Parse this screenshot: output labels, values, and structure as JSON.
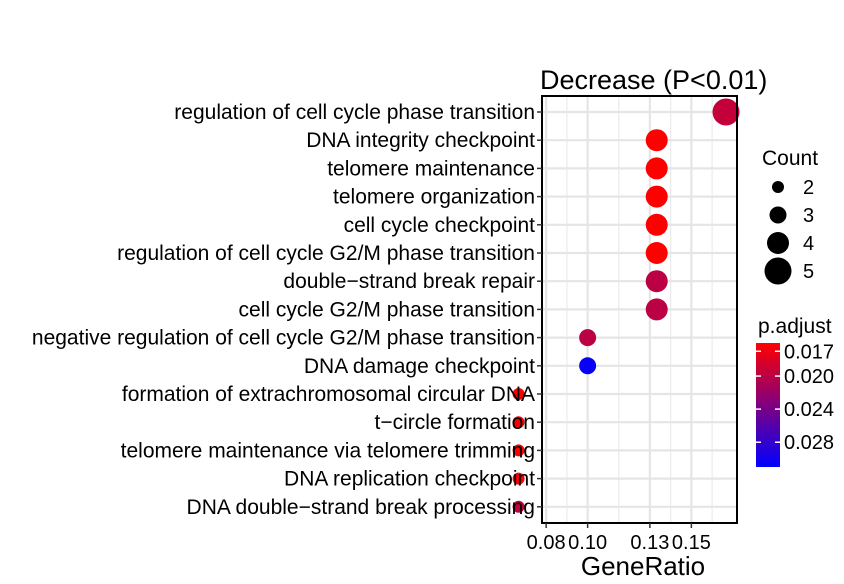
{
  "chart_data": {
    "type": "scatter",
    "title": "Decrease (P<0.01)",
    "xlabel": "GeneRatio",
    "ylabel": "",
    "xlim": [
      0.078,
      0.172
    ],
    "x_ticks": [
      0.08,
      0.1,
      0.13,
      0.15
    ],
    "x_tick_labels": [
      "0.08",
      "0.10",
      "0.13",
      "0.15"
    ],
    "grid": true,
    "categories": [
      "regulation of cell cycle phase transition",
      "DNA integrity checkpoint",
      "telomere maintenance",
      "telomere organization",
      "cell cycle checkpoint",
      "regulation of cell cycle G2/M phase transition",
      "double−strand break repair",
      "cell cycle G2/M phase transition",
      "negative regulation of cell cycle G2/M phase transition",
      "DNA damage checkpoint",
      "formation of extrachromosomal circular DNA",
      "t−circle formation",
      "telomere maintenance via telomere trimming",
      "DNA replication checkpoint",
      "DNA double−strand break processing"
    ],
    "points": [
      {
        "category": "regulation of cell cycle phase transition",
        "gene_ratio": 0.1667,
        "count": 5,
        "p_adjust": 0.0195
      },
      {
        "category": "DNA integrity checkpoint",
        "gene_ratio": 0.1333,
        "count": 4,
        "p_adjust": 0.016
      },
      {
        "category": "telomere maintenance",
        "gene_ratio": 0.1333,
        "count": 4,
        "p_adjust": 0.016
      },
      {
        "category": "telomere organization",
        "gene_ratio": 0.1333,
        "count": 4,
        "p_adjust": 0.016
      },
      {
        "category": "cell cycle checkpoint",
        "gene_ratio": 0.1333,
        "count": 4,
        "p_adjust": 0.016
      },
      {
        "category": "regulation of cell cycle G2/M phase transition",
        "gene_ratio": 0.1333,
        "count": 4,
        "p_adjust": 0.016
      },
      {
        "category": "double−strand break repair",
        "gene_ratio": 0.1333,
        "count": 4,
        "p_adjust": 0.02
      },
      {
        "category": "cell cycle G2/M phase transition",
        "gene_ratio": 0.1333,
        "count": 4,
        "p_adjust": 0.02
      },
      {
        "category": "negative regulation of cell cycle G2/M phase transition",
        "gene_ratio": 0.1,
        "count": 3,
        "p_adjust": 0.02
      },
      {
        "category": "DNA damage checkpoint",
        "gene_ratio": 0.1,
        "count": 3,
        "p_adjust": 0.0305
      },
      {
        "category": "formation of extrachromosomal circular DNA",
        "gene_ratio": 0.0667,
        "count": 2,
        "p_adjust": 0.016
      },
      {
        "category": "t−circle formation",
        "gene_ratio": 0.0667,
        "count": 2,
        "p_adjust": 0.016
      },
      {
        "category": "telomere maintenance via telomere trimming",
        "gene_ratio": 0.0667,
        "count": 2,
        "p_adjust": 0.016
      },
      {
        "category": "DNA replication checkpoint",
        "gene_ratio": 0.0667,
        "count": 2,
        "p_adjust": 0.016
      },
      {
        "category": "DNA double−strand break processing",
        "gene_ratio": 0.0667,
        "count": 2,
        "p_adjust": 0.0195
      }
    ],
    "legend_size": {
      "title": "Count",
      "values": [
        2,
        3,
        4,
        5
      ],
      "labels": [
        "2",
        "3",
        "4",
        "5"
      ]
    },
    "legend_color": {
      "title": "p.adjust",
      "breaks": [
        0.017,
        0.02,
        0.024,
        0.028
      ],
      "labels": [
        "0.017",
        "0.020",
        "0.024",
        "0.028"
      ],
      "range": [
        0.016,
        0.031
      ],
      "low_color": "#FF0000",
      "high_color": "#0000FF"
    },
    "legend_placement": "right"
  }
}
